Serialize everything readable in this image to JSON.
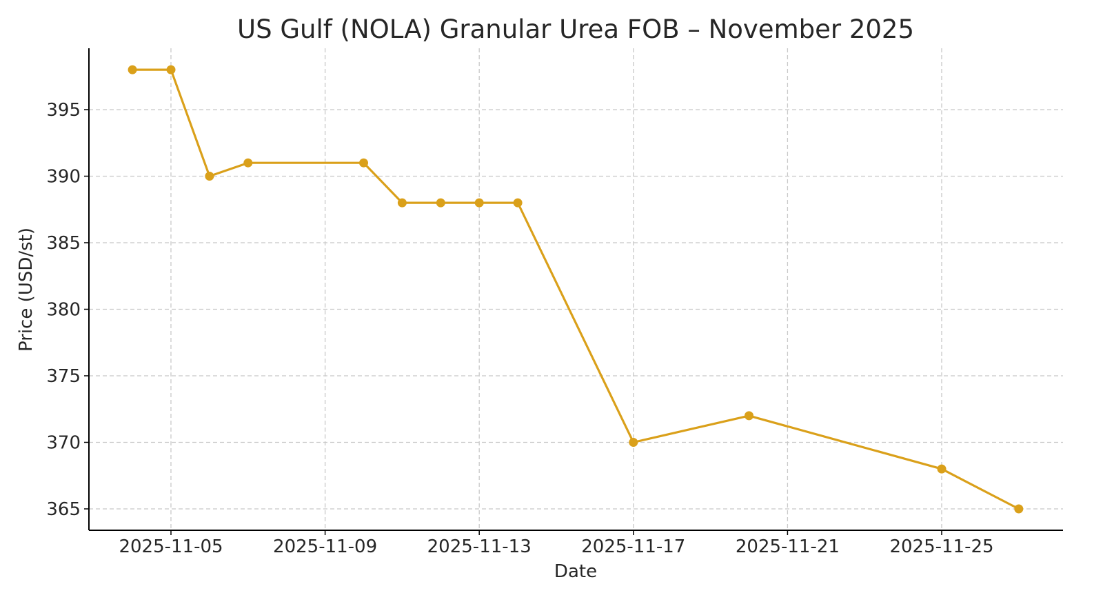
{
  "chart_data": {
    "type": "line",
    "title": "US Gulf (NOLA) Granular Urea FOB – November 2025",
    "xlabel": "Date",
    "ylabel": "Price (USD/st)",
    "x": [
      "2025-11-04",
      "2025-11-05",
      "2025-11-06",
      "2025-11-07",
      "2025-11-10",
      "2025-11-11",
      "2025-11-12",
      "2025-11-13",
      "2025-11-14",
      "2025-11-17",
      "2025-11-20",
      "2025-11-25",
      "2025-11-27"
    ],
    "series": [
      {
        "name": "NOLA Granular Urea FOB",
        "color": "#DAA01A",
        "values": [
          398,
          398,
          390,
          391,
          391,
          388,
          388,
          388,
          388,
          370,
          372,
          368,
          365
        ]
      }
    ],
    "x_ticks": [
      "2025-11-05",
      "2025-11-09",
      "2025-11-13",
      "2025-11-17",
      "2025-11-21",
      "2025-11-25"
    ],
    "y_ticks": [
      365,
      370,
      375,
      380,
      385,
      390,
      395
    ],
    "ylim": [
      363.4,
      399.6
    ],
    "xlim": [
      "2025-11-03.0",
      "2025-11-28.2"
    ],
    "grid": true,
    "legend": null,
    "markers": "circle"
  }
}
